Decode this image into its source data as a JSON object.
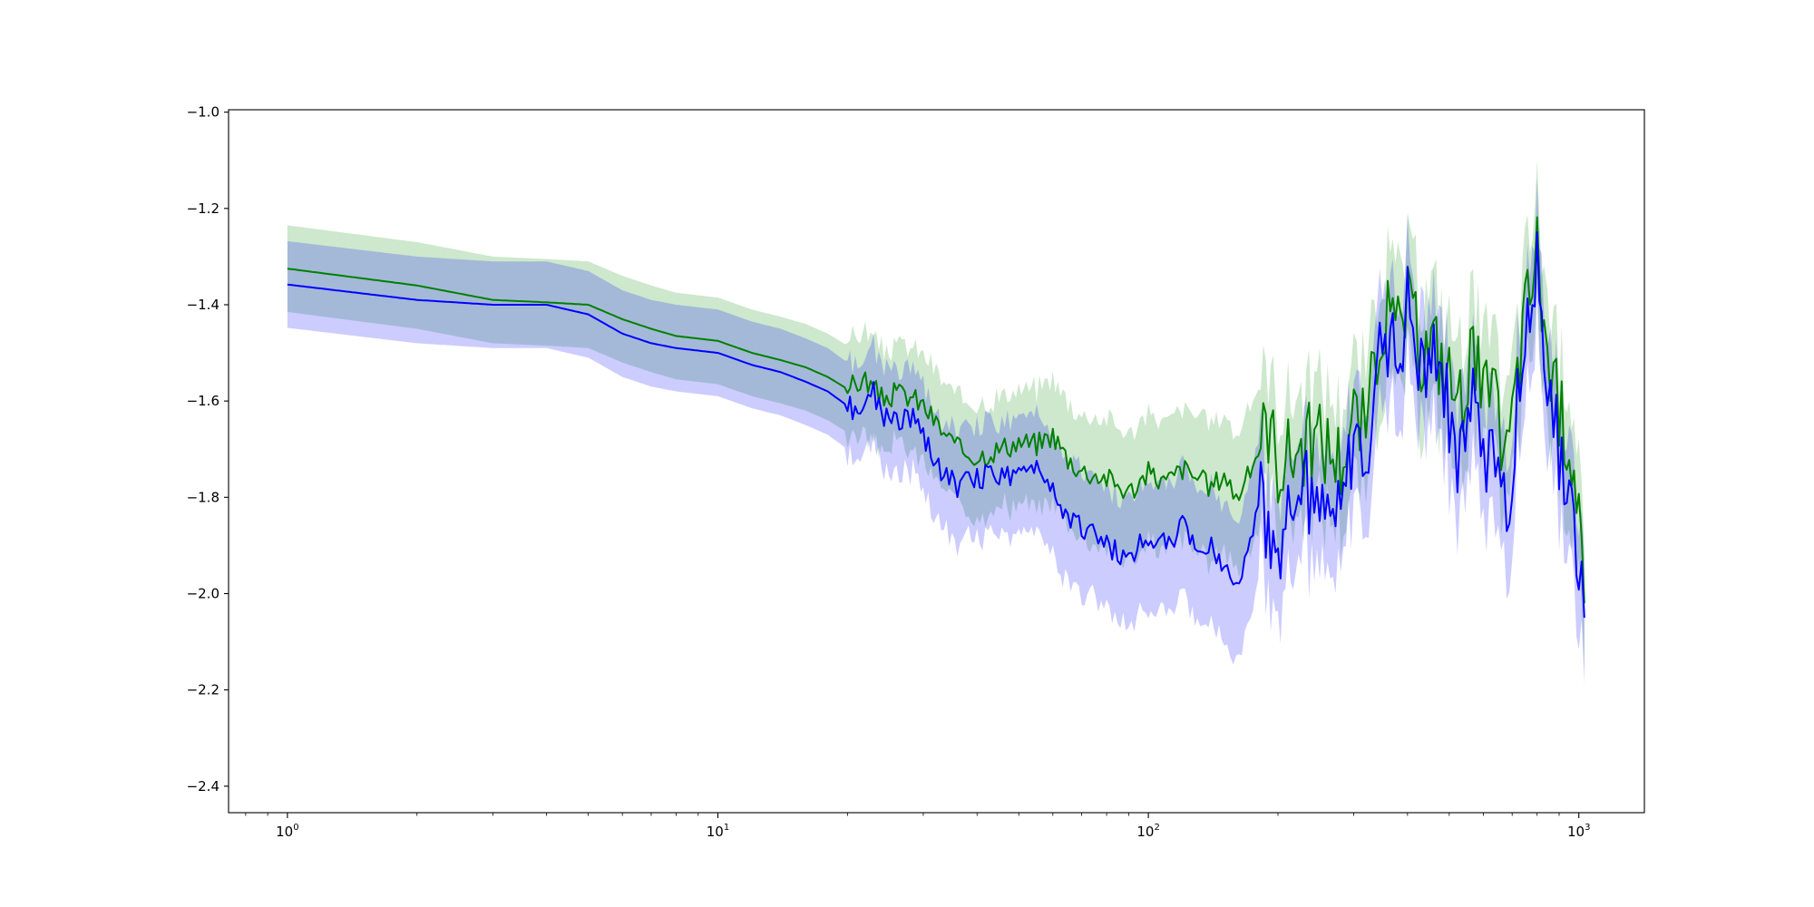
{
  "chart_data": {
    "type": "line",
    "title": "",
    "xlabel": "",
    "ylabel": "",
    "xscale": "log",
    "xlim": [
      0.73,
      1420
    ],
    "ylim": [
      -2.455,
      -0.995
    ],
    "grid": false,
    "legend": "none",
    "x_ticks": [
      {
        "base": "10",
        "exp": "0",
        "value": 1
      },
      {
        "base": "10",
        "exp": "1",
        "value": 10
      },
      {
        "base": "10",
        "exp": "2",
        "value": 100
      },
      {
        "base": "10",
        "exp": "3",
        "value": 1000
      }
    ],
    "y_ticks": [
      {
        "label": "−1.0",
        "value": -1.0
      },
      {
        "label": "−1.2",
        "value": -1.2
      },
      {
        "label": "−1.4",
        "value": -1.4
      },
      {
        "label": "−1.6",
        "value": -1.6
      },
      {
        "label": "−1.8",
        "value": -1.8
      },
      {
        "label": "−2.0",
        "value": -2.0
      },
      {
        "label": "−2.2",
        "value": -2.2
      },
      {
        "label": "−2.4",
        "value": -2.4
      }
    ],
    "series": [
      {
        "color": "#008000",
        "band_color": "#2ca02c",
        "band_half_width": 0.09,
        "x": [
          1,
          2,
          3,
          4,
          5,
          6,
          7,
          8,
          10,
          12,
          14,
          16,
          18,
          20,
          22,
          24,
          26,
          28,
          30,
          33,
          36,
          40,
          45,
          50,
          55,
          60,
          65,
          70,
          80,
          90,
          100,
          110,
          120,
          130,
          140,
          150,
          160,
          170,
          180,
          190,
          200,
          220,
          250,
          280,
          300,
          320,
          350,
          380,
          400,
          430,
          460,
          500,
          530,
          560,
          600,
          640,
          680,
          720,
          750,
          780,
          800,
          830,
          860,
          900,
          950,
          1000,
          1030
        ],
        "y": [
          -1.325,
          -1.36,
          -1.39,
          -1.395,
          -1.4,
          -1.43,
          -1.45,
          -1.465,
          -1.475,
          -1.5,
          -1.515,
          -1.53,
          -1.55,
          -1.575,
          -1.555,
          -1.595,
          -1.585,
          -1.59,
          -1.61,
          -1.66,
          -1.7,
          -1.715,
          -1.7,
          -1.685,
          -1.69,
          -1.67,
          -1.72,
          -1.745,
          -1.76,
          -1.79,
          -1.75,
          -1.77,
          -1.74,
          -1.76,
          -1.78,
          -1.75,
          -1.8,
          -1.76,
          -1.7,
          -1.64,
          -1.73,
          -1.7,
          -1.68,
          -1.72,
          -1.63,
          -1.66,
          -1.42,
          -1.46,
          -1.4,
          -1.5,
          -1.48,
          -1.55,
          -1.6,
          -1.5,
          -1.58,
          -1.62,
          -1.72,
          -1.55,
          -1.42,
          -1.35,
          -1.28,
          -1.44,
          -1.55,
          -1.62,
          -1.68,
          -1.8,
          -2.02
        ]
      },
      {
        "color": "#0000ff",
        "band_color": "#0000ff",
        "band_half_width": 0.09,
        "x": [
          1,
          2,
          3,
          4,
          5,
          6,
          7,
          8,
          10,
          12,
          14,
          16,
          18,
          20,
          22,
          23,
          24,
          26,
          28,
          30,
          33,
          36,
          40,
          45,
          50,
          55,
          60,
          65,
          70,
          80,
          90,
          100,
          110,
          120,
          130,
          140,
          150,
          160,
          170,
          180,
          190,
          200,
          220,
          250,
          280,
          300,
          320,
          350,
          380,
          400,
          430,
          460,
          500,
          530,
          560,
          600,
          640,
          680,
          720,
          750,
          780,
          800,
          830,
          860,
          900,
          950,
          1000,
          1030
        ],
        "y": [
          -1.358,
          -1.39,
          -1.4,
          -1.4,
          -1.42,
          -1.46,
          -1.48,
          -1.49,
          -1.5,
          -1.525,
          -1.54,
          -1.56,
          -1.58,
          -1.61,
          -1.625,
          -1.58,
          -1.63,
          -1.64,
          -1.63,
          -1.68,
          -1.74,
          -1.78,
          -1.76,
          -1.75,
          -1.76,
          -1.73,
          -1.78,
          -1.84,
          -1.86,
          -1.9,
          -1.93,
          -1.88,
          -1.9,
          -1.86,
          -1.92,
          -1.89,
          -1.95,
          -1.97,
          -1.92,
          -1.8,
          -1.85,
          -1.9,
          -1.8,
          -1.78,
          -1.85,
          -1.7,
          -1.78,
          -1.45,
          -1.5,
          -1.4,
          -1.52,
          -1.5,
          -1.62,
          -1.75,
          -1.58,
          -1.7,
          -1.72,
          -1.85,
          -1.62,
          -1.48,
          -1.42,
          -1.25,
          -1.45,
          -1.62,
          -1.7,
          -1.78,
          -1.95,
          -2.05
        ]
      }
    ]
  }
}
